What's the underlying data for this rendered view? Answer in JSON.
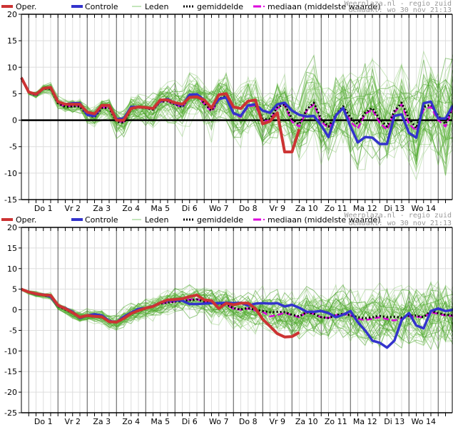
{
  "legend": {
    "oper": "Oper.",
    "controle": "Controle",
    "leden": "Leden",
    "gemiddelde": "gemiddelde",
    "mediaan": "mediaan (middelste waarde)"
  },
  "source": "Weerplaza.nl - regio zuid",
  "made": "Gemaakt: wo 30 nov 21:13",
  "colors": {
    "oper": "#cc3333",
    "controle": "#3333cc",
    "leden": "#55aa33",
    "gemiddelde": "#000000",
    "mediaan": "#dd00dd"
  },
  "chart_data": [
    {
      "type": "line",
      "title": "",
      "xlabel": "",
      "ylabel": "",
      "ylim": [
        -15,
        20
      ],
      "yticks": [
        -15,
        -10,
        -5,
        0,
        5,
        10,
        15,
        20
      ],
      "x_step_hours": 6,
      "categories": [
        "Do 1",
        "Vr 2",
        "Za 3",
        "Zo 4",
        "Ma 5",
        "Di 6",
        "Wo 7",
        "Do 8",
        "Vr 9",
        "Za 10",
        "Zo 11",
        "Ma 12",
        "Di 13",
        "Wo 14"
      ],
      "grid": true,
      "series": [
        {
          "name": "Oper.",
          "values": [
            8,
            5.3,
            4.9,
            6,
            6.2,
            3.5,
            3,
            3,
            3,
            1.5,
            1.2,
            2.8,
            2.8,
            0,
            0,
            2.2,
            2.5,
            2.4,
            2.2,
            3.8,
            3.8,
            3.3,
            3,
            4.3,
            4.4,
            3.8,
            2.3,
            4.8,
            5,
            2.5,
            2.2,
            3.6,
            3.8,
            -0.7,
            -0.2,
            1.4,
            -6,
            -6,
            -1.7
          ]
        },
        {
          "name": "Controle",
          "values": [
            8,
            5.3,
            4.8,
            6,
            6.2,
            3.5,
            3,
            3.2,
            3.2,
            1,
            0.8,
            2.8,
            2.8,
            0.2,
            0.3,
            2.5,
            2.5,
            2.4,
            2.2,
            3.6,
            4,
            3.2,
            2.8,
            4.8,
            4.9,
            3.8,
            2.3,
            4,
            4.3,
            1.3,
            0.8,
            2.8,
            3,
            1.8,
            1.4,
            3,
            3.3,
            1.8,
            1,
            0.7,
            0.8,
            -1,
            -3.2,
            0.9,
            2.3,
            -1.2,
            -4.2,
            -3.2,
            -3.3,
            -4.5,
            -4.5,
            0.8,
            1.1,
            -2.4,
            -3.3,
            3.2,
            3.5,
            0.3,
            0.3,
            2.8
          ]
        },
        {
          "name": "gemiddelde",
          "values": [
            8,
            5.2,
            4.7,
            5.9,
            6,
            3.2,
            2.5,
            2.6,
            2.6,
            1,
            0.6,
            2.3,
            2.3,
            -0.3,
            -0.5,
            2.1,
            2.4,
            2.3,
            2,
            3.5,
            3.6,
            3,
            2.5,
            4.6,
            4.8,
            3.2,
            1.8,
            4.1,
            4.5,
            1.4,
            0.8,
            2.8,
            3,
            0.2,
            0.2,
            2.5,
            3,
            0.2,
            -0.8,
            2,
            3.3,
            0.2,
            -1.2,
            1,
            2.6,
            0.5,
            -0.7,
            1.4,
            2.3,
            0.2,
            -1.2,
            1.7,
            3.3,
            0.3,
            -1.5,
            2.5,
            2.9,
            0.8,
            -0.7,
            2.7
          ]
        },
        {
          "name": "mediaan",
          "values": [
            8,
            5.2,
            4.7,
            6,
            6,
            3.2,
            2.6,
            2.7,
            2.7,
            1,
            0.7,
            2.4,
            2.4,
            -0.2,
            -0.3,
            2.2,
            2.4,
            2.3,
            2,
            3.5,
            3.6,
            3,
            2.4,
            4.4,
            4.6,
            3.1,
            1.6,
            3.9,
            4.3,
            1.2,
            0.6,
            2.6,
            2.8,
            -0.2,
            0,
            2.3,
            2.9,
            -0.3,
            -1.2,
            1.8,
            3,
            -0.3,
            -1.5,
            0.8,
            2.4,
            -0.3,
            -1.6,
            1.2,
            2,
            -0.5,
            -1.8,
            1.5,
            3,
            -0.7,
            -2,
            2,
            2.5,
            0,
            -1.2,
            2.4
          ]
        }
      ]
    },
    {
      "type": "line",
      "title": "",
      "xlabel": "",
      "ylabel": "",
      "ylim": [
        -25,
        20
      ],
      "yticks": [
        -25,
        -20,
        -15,
        -10,
        -5,
        0,
        5,
        10,
        15,
        20
      ],
      "x_step_hours": 6,
      "categories": [
        "Do 1",
        "Vr 2",
        "Za 3",
        "Zo 4",
        "Ma 5",
        "Di 6",
        "Wo 7",
        "Do 8",
        "Vr 9",
        "Za 10",
        "Zo 11",
        "Ma 12",
        "Di 13",
        "Wo 14"
      ],
      "grid": true,
      "series": [
        {
          "name": "Oper.",
          "values": [
            5,
            4.3,
            3.9,
            3.6,
            3.5,
            1.1,
            0.3,
            -0.7,
            -1.8,
            -1.4,
            -1.6,
            -1.7,
            -2.9,
            -3,
            -2.1,
            -0.9,
            -0.2,
            0.4,
            0.8,
            1.7,
            2.4,
            2.5,
            2.7,
            3.2,
            3.6,
            2.4,
            2.2,
            0.3,
            1.6,
            1.2,
            1.6,
            1.6,
            0.3,
            -2.3,
            -4,
            -5.8,
            -6.6,
            -6.5,
            -5.5
          ]
        },
        {
          "name": "Controle",
          "values": [
            5,
            4.3,
            3.8,
            3.7,
            3.2,
            1,
            0.4,
            -0.5,
            -2,
            -1.4,
            -1.1,
            -1.4,
            -2.7,
            -3,
            -1.7,
            -0.7,
            0.2,
            0.4,
            0.9,
            1.7,
            2.2,
            2.3,
            2.2,
            1.4,
            1.4,
            1.5,
            1.6,
            1.6,
            1.7,
            1.6,
            1.7,
            1,
            1.5,
            1.6,
            1.5,
            1.6,
            0.8,
            1.2,
            0.5,
            -0.5,
            -0.5,
            -0.3,
            -0.8,
            -1.8,
            -1.2,
            -0.3,
            -3,
            -5,
            -7.5,
            -8,
            -9.2,
            -7.5,
            -2.5,
            -0.8,
            -3.8,
            -4.5,
            -0.3,
            0.3,
            -0.3,
            0,
            1.6
          ]
        },
        {
          "name": "gemiddelde",
          "values": [
            5,
            4.2,
            3.8,
            3.5,
            3.2,
            0.9,
            0.1,
            -0.8,
            -1.8,
            -1.5,
            -1.6,
            -1.8,
            -2.8,
            -3,
            -2,
            -0.9,
            -0.3,
            0.3,
            0.8,
            1.5,
            1.8,
            2,
            2.1,
            2.3,
            2.5,
            2,
            1.6,
            1.5,
            1.3,
            0.4,
            0.1,
            0.4,
            0,
            -0.3,
            -0.6,
            -0.5,
            -0.6,
            -1.2,
            -1.6,
            -0.6,
            -1,
            -1.8,
            -2,
            -1.3,
            -1,
            -1.3,
            -1.8,
            -2.1,
            -1.8,
            -1.5,
            -1.8,
            -1.7,
            -1.9,
            -1.4,
            -1.4,
            -1.8,
            -0.3,
            -0.8,
            -1.2,
            -1.3,
            0
          ]
        },
        {
          "name": "mediaan",
          "values": [
            5,
            4.2,
            3.8,
            3.5,
            3.2,
            0.9,
            0.1,
            -0.8,
            -1.8,
            -1.5,
            -1.6,
            -1.8,
            -2.8,
            -3,
            -2,
            -0.9,
            -0.3,
            0.3,
            0.8,
            1.5,
            1.8,
            2,
            2.2,
            2.5,
            2.6,
            1.9,
            1.6,
            1.4,
            1.2,
            0.3,
            0,
            0.3,
            -0.2,
            -0.5,
            -1.6,
            -1.3,
            -0.7,
            -1.3,
            -1.8,
            -0.6,
            -1,
            -1.8,
            -2,
            -1.3,
            -1,
            -1.3,
            -2.2,
            -2.5,
            -2.2,
            -1.8,
            -2.3,
            -2.6,
            -2.1,
            -1.6,
            -1.7,
            -1.8,
            -0.6,
            -1,
            -1.4,
            -1.5,
            0.4
          ]
        }
      ]
    }
  ]
}
